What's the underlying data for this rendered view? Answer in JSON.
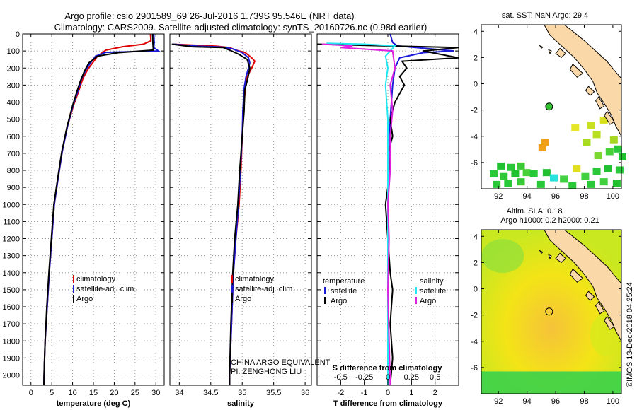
{
  "title": {
    "line1": "Argo profile: csio 2901589_69 26-Jul-2016 1.739S 95.546E (NRT data)",
    "line2": "Climatology: CARS2009. Satellite-adjusted climatology: synTS_20160726.nc (0.98d earlier)"
  },
  "colors": {
    "climatology": "#e00000",
    "satellite": "#1a1ad8",
    "argo": "#000000",
    "satellite_salinity": "#22e6f0",
    "argo_salinity": "#e020e0",
    "land": "#fad8a8",
    "sst_bg": "#ffffff",
    "sla_bg": "#f5e800"
  },
  "chart_data": [
    {
      "id": "temperature",
      "type": "line",
      "xlabel": "temperature (deg C)",
      "ylabel": "",
      "xlim": [
        -2,
        32
      ],
      "ylim": [
        2060,
        0
      ],
      "xticks": [
        0,
        5,
        10,
        15,
        20,
        25,
        30
      ],
      "yticks": [
        0,
        100,
        200,
        300,
        400,
        500,
        600,
        700,
        800,
        900,
        1000,
        1100,
        1200,
        1300,
        1400,
        1500,
        1600,
        1700,
        1800,
        1900,
        2000
      ],
      "legend": [
        "climatology",
        "satellite-adj. clim.",
        "Argo"
      ],
      "legend_position": "lower-right",
      "series": [
        {
          "name": "climatology",
          "color_key": "climatology",
          "points": [
            [
              28.7,
              0
            ],
            [
              28.8,
              40
            ],
            [
              27,
              60
            ],
            [
              22,
              75
            ],
            [
              18,
              95
            ],
            [
              16,
              130
            ],
            [
              14.8,
              170
            ],
            [
              13.6,
              210
            ],
            [
              12.5,
              260
            ],
            [
              11.4,
              340
            ],
            [
              10.2,
              420
            ],
            [
              8.8,
              540
            ],
            [
              7.5,
              690
            ],
            [
              6.5,
              850
            ],
            [
              5.6,
              1000
            ],
            [
              5,
              1200
            ],
            [
              4.4,
              1400
            ],
            [
              3.9,
              1600
            ],
            [
              3.4,
              1800
            ],
            [
              3.2,
              1950
            ],
            [
              3.1,
              2060
            ]
          ]
        },
        {
          "name": "satellite-adj. clim.",
          "color_key": "satellite",
          "points": [
            [
              29.5,
              0
            ],
            [
              29.6,
              50
            ],
            [
              29.5,
              80
            ],
            [
              30.6,
              100
            ],
            [
              18,
              108
            ],
            [
              15.5,
              130
            ],
            [
              14.3,
              170
            ],
            [
              13.2,
              210
            ],
            [
              12.2,
              260
            ],
            [
              11.2,
              340
            ],
            [
              10.1,
              420
            ],
            [
              8.8,
              540
            ],
            [
              7.5,
              690
            ],
            [
              6.5,
              850
            ],
            [
              5.6,
              1000
            ],
            [
              5,
              1200
            ],
            [
              4.4,
              1400
            ],
            [
              3.9,
              1600
            ],
            [
              3.4,
              1800
            ],
            [
              3.2,
              1950
            ],
            [
              3.1,
              2060
            ]
          ]
        },
        {
          "name": "Argo",
          "color_key": "argo",
          "points": [
            [
              29.2,
              0
            ],
            [
              29.3,
              60
            ],
            [
              29.4,
              95
            ],
            [
              21,
              110
            ],
            [
              16,
              130
            ],
            [
              13.9,
              170
            ],
            [
              12.8,
              220
            ],
            [
              11.8,
              280
            ],
            [
              11,
              340
            ],
            [
              10,
              420
            ],
            [
              8.7,
              540
            ],
            [
              7.4,
              690
            ],
            [
              6.4,
              850
            ],
            [
              5.5,
              1000
            ],
            [
              4.9,
              1200
            ],
            [
              4.3,
              1400
            ],
            [
              3.8,
              1600
            ],
            [
              3.4,
              1800
            ],
            [
              3.2,
              1950
            ],
            [
              3.1,
              2060
            ]
          ]
        }
      ]
    },
    {
      "id": "salinity",
      "type": "line",
      "xlabel": "salinity",
      "ylabel": "",
      "xlim": [
        33.85,
        36.1
      ],
      "ylim": [
        2060,
        0
      ],
      "xticks": [
        34,
        34.5,
        35,
        35.5,
        36
      ],
      "legend": [
        "climatology",
        "satellite-adj. clim.",
        "Argo"
      ],
      "legend_position": "lower-right",
      "series": [
        {
          "name": "climatology",
          "color_key": "climatology",
          "points": [
            [
              33.9,
              60
            ],
            [
              34.2,
              65
            ],
            [
              34.5,
              70
            ],
            [
              34.6,
              72
            ],
            [
              34.8,
              80
            ],
            [
              34.9,
              95
            ],
            [
              35.05,
              110
            ],
            [
              35.15,
              140
            ],
            [
              35.2,
              160
            ],
            [
              35.15,
              200
            ],
            [
              35.08,
              250
            ],
            [
              35.05,
              320
            ],
            [
              35.02,
              450
            ],
            [
              35.0,
              600
            ],
            [
              34.98,
              800
            ],
            [
              34.95,
              1000
            ],
            [
              34.9,
              1200
            ],
            [
              34.86,
              1400
            ],
            [
              34.83,
              1700
            ],
            [
              34.8,
              2000
            ],
            [
              34.8,
              2060
            ]
          ]
        },
        {
          "name": "satellite-adj. clim.",
          "color_key": "satellite",
          "points": [
            [
              33.9,
              60
            ],
            [
              34.3,
              72
            ],
            [
              34.55,
              75
            ],
            [
              34.7,
              78
            ],
            [
              34.85,
              88
            ],
            [
              35.0,
              110
            ],
            [
              35.1,
              140
            ],
            [
              35.12,
              170
            ],
            [
              35.1,
              200
            ],
            [
              35.06,
              250
            ],
            [
              35.03,
              320
            ],
            [
              35.01,
              450
            ],
            [
              35.0,
              600
            ],
            [
              34.97,
              800
            ],
            [
              34.94,
              1000
            ],
            [
              34.9,
              1200
            ],
            [
              34.86,
              1400
            ],
            [
              34.83,
              1700
            ],
            [
              34.8,
              2000
            ],
            [
              34.8,
              2060
            ]
          ]
        },
        {
          "name": "Argo",
          "color_key": "argo",
          "points": [
            [
              33.88,
              60
            ],
            [
              34.2,
              75
            ],
            [
              34.45,
              78
            ],
            [
              34.7,
              80
            ],
            [
              34.8,
              95
            ],
            [
              34.95,
              120
            ],
            [
              35.08,
              150
            ],
            [
              35.12,
              200
            ],
            [
              35.09,
              260
            ],
            [
              35.04,
              330
            ],
            [
              35.03,
              450
            ],
            [
              35.0,
              600
            ],
            [
              34.96,
              800
            ],
            [
              34.93,
              1000
            ],
            [
              34.88,
              1200
            ],
            [
              34.85,
              1400
            ],
            [
              34.82,
              1700
            ],
            [
              34.8,
              2000
            ],
            [
              34.8,
              2060
            ]
          ]
        }
      ]
    },
    {
      "id": "difference",
      "type": "line",
      "xlabel": "T difference from climatology",
      "xlabel_top": "S difference from climatology",
      "ylabel": "",
      "xlim": [
        -3,
        3
      ],
      "ylim": [
        2060,
        0
      ],
      "xticks": [
        -2,
        -1,
        0,
        1,
        2
      ],
      "xticks_salinity_labels": [
        "-0.5",
        "-0.25",
        "0",
        "0.25",
        "0.5"
      ],
      "legend": [
        "temperature",
        "satellite",
        "Argo",
        "salinity",
        "satellite",
        "Argo"
      ],
      "legend_position": "lower-center",
      "series": [
        {
          "name": "T satellite",
          "color_key": "satellite",
          "points": [
            [
              0.1,
              0
            ],
            [
              0.2,
              50
            ],
            [
              0.4,
              70
            ],
            [
              2.8,
              100
            ],
            [
              1.5,
              110
            ],
            [
              0.5,
              140
            ],
            [
              0.3,
              200
            ],
            [
              0.2,
              300
            ],
            [
              0.1,
              500
            ],
            [
              0.05,
              700
            ],
            [
              0,
              1000
            ],
            [
              0,
              1400
            ],
            [
              0,
              2060
            ]
          ]
        },
        {
          "name": "T Argo",
          "color_key": "argo",
          "points": [
            [
              -3,
              60
            ],
            [
              3,
              80
            ],
            [
              1.5,
              100
            ],
            [
              3,
              140
            ],
            [
              0.6,
              160
            ],
            [
              0.8,
              200
            ],
            [
              0.5,
              250
            ],
            [
              0.7,
              300
            ],
            [
              0.3,
              400
            ],
            [
              0.1,
              500
            ],
            [
              0.2,
              600
            ],
            [
              0,
              700
            ],
            [
              0.1,
              800
            ],
            [
              0,
              900
            ],
            [
              -0.1,
              1000
            ],
            [
              0,
              1200
            ],
            [
              0.1,
              1400
            ],
            [
              0.2,
              1500
            ],
            [
              0.1,
              1700
            ],
            [
              0.2,
              1900
            ],
            [
              0.1,
              2060
            ]
          ]
        },
        {
          "name": "S satellite",
          "color_key": "satellite_salinity",
          "points": [
            [
              -2.6,
              55
            ],
            [
              -1,
              60
            ],
            [
              0.3,
              70
            ],
            [
              0.1,
              100
            ],
            [
              -0.1,
              130
            ],
            [
              0,
              200
            ],
            [
              -0.1,
              300
            ],
            [
              0,
              500
            ],
            [
              0,
              800
            ],
            [
              0,
              1100
            ],
            [
              0,
              1500
            ],
            [
              0,
              2060
            ]
          ]
        },
        {
          "name": "S Argo",
          "color_key": "argo_salinity",
          "points": [
            [
              -2.8,
              60
            ],
            [
              -1.5,
              70
            ],
            [
              -2,
              80
            ],
            [
              0.2,
              100
            ],
            [
              0.3,
              200
            ],
            [
              0.1,
              300
            ],
            [
              0.2,
              450
            ],
            [
              0.1,
              600
            ],
            [
              0.1,
              800
            ],
            [
              0,
              1000
            ],
            [
              0.05,
              1200
            ],
            [
              0,
              1500
            ],
            [
              0.1,
              2060
            ]
          ]
        }
      ]
    }
  ],
  "maps": {
    "sst": {
      "title": "sat. SST: NaN Argo: 29.4",
      "xticks": [
        92,
        94,
        96,
        98,
        100
      ],
      "yticks": [
        4,
        2,
        0,
        -2,
        -4,
        -6
      ],
      "xlim": [
        90.8,
        100.6
      ],
      "ylim": [
        -8,
        4.5
      ],
      "argo_lon": 95.546,
      "argo_lat": -1.739,
      "argo_marker_color": "#30c030"
    },
    "sla": {
      "title_line1": "Altim. SLA: 0.18",
      "title_line2": "Argo h1000: 0.2 h2000: 0.21",
      "xticks": [
        92,
        94,
        96,
        98,
        100
      ],
      "yticks": [
        4,
        2,
        0,
        -2,
        -4,
        -6
      ],
      "xlim": [
        90.8,
        100.6
      ],
      "ylim": [
        -8,
        4.5
      ],
      "argo_lon": 95.546,
      "argo_lat": -1.739
    }
  },
  "annotations": {
    "float_owner_line1": "CHINA ARGO EQUIVALENT",
    "float_owner_line2": "PI: ZENGHONG LIU",
    "credit": "©IMOS 13-Dec-2018 04:25:24"
  }
}
